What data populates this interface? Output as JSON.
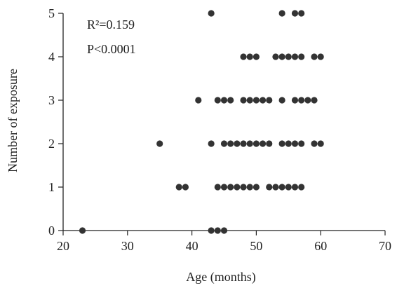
{
  "chart_data": {
    "type": "scatter",
    "xlabel": "Age (months)",
    "ylabel": "Number of exposure",
    "xlim": [
      20,
      70
    ],
    "ylim": [
      0,
      5
    ],
    "x_ticks": [
      20,
      30,
      40,
      50,
      60,
      70
    ],
    "y_ticks": [
      0,
      1,
      2,
      3,
      4,
      5
    ],
    "grid": false,
    "annotations": [
      {
        "id": "r2",
        "text": "R²=0.159"
      },
      {
        "id": "p",
        "text": "P<0.0001"
      }
    ],
    "marker_color": "#333333",
    "points": [
      {
        "x": 23,
        "y": 0
      },
      {
        "x": 43,
        "y": 0
      },
      {
        "x": 44,
        "y": 0
      },
      {
        "x": 45,
        "y": 0
      },
      {
        "x": 38,
        "y": 1
      },
      {
        "x": 39,
        "y": 1
      },
      {
        "x": 44,
        "y": 1
      },
      {
        "x": 45,
        "y": 1
      },
      {
        "x": 46,
        "y": 1
      },
      {
        "x": 47,
        "y": 1
      },
      {
        "x": 48,
        "y": 1
      },
      {
        "x": 49,
        "y": 1
      },
      {
        "x": 50,
        "y": 1
      },
      {
        "x": 52,
        "y": 1
      },
      {
        "x": 53,
        "y": 1
      },
      {
        "x": 54,
        "y": 1
      },
      {
        "x": 55,
        "y": 1
      },
      {
        "x": 56,
        "y": 1
      },
      {
        "x": 57,
        "y": 1
      },
      {
        "x": 35,
        "y": 2
      },
      {
        "x": 43,
        "y": 2
      },
      {
        "x": 45,
        "y": 2
      },
      {
        "x": 46,
        "y": 2
      },
      {
        "x": 47,
        "y": 2
      },
      {
        "x": 48,
        "y": 2
      },
      {
        "x": 49,
        "y": 2
      },
      {
        "x": 50,
        "y": 2
      },
      {
        "x": 51,
        "y": 2
      },
      {
        "x": 52,
        "y": 2
      },
      {
        "x": 54,
        "y": 2
      },
      {
        "x": 55,
        "y": 2
      },
      {
        "x": 56,
        "y": 2
      },
      {
        "x": 57,
        "y": 2
      },
      {
        "x": 59,
        "y": 2
      },
      {
        "x": 60,
        "y": 2
      },
      {
        "x": 41,
        "y": 3
      },
      {
        "x": 44,
        "y": 3
      },
      {
        "x": 45,
        "y": 3
      },
      {
        "x": 46,
        "y": 3
      },
      {
        "x": 48,
        "y": 3
      },
      {
        "x": 49,
        "y": 3
      },
      {
        "x": 50,
        "y": 3
      },
      {
        "x": 51,
        "y": 3
      },
      {
        "x": 52,
        "y": 3
      },
      {
        "x": 54,
        "y": 3
      },
      {
        "x": 56,
        "y": 3
      },
      {
        "x": 57,
        "y": 3
      },
      {
        "x": 58,
        "y": 3
      },
      {
        "x": 59,
        "y": 3
      },
      {
        "x": 48,
        "y": 4
      },
      {
        "x": 49,
        "y": 4
      },
      {
        "x": 50,
        "y": 4
      },
      {
        "x": 53,
        "y": 4
      },
      {
        "x": 54,
        "y": 4
      },
      {
        "x": 55,
        "y": 4
      },
      {
        "x": 56,
        "y": 4
      },
      {
        "x": 57,
        "y": 4
      },
      {
        "x": 59,
        "y": 4
      },
      {
        "x": 60,
        "y": 4
      },
      {
        "x": 43,
        "y": 5
      },
      {
        "x": 54,
        "y": 5
      },
      {
        "x": 56,
        "y": 5
      },
      {
        "x": 57,
        "y": 5
      }
    ]
  }
}
